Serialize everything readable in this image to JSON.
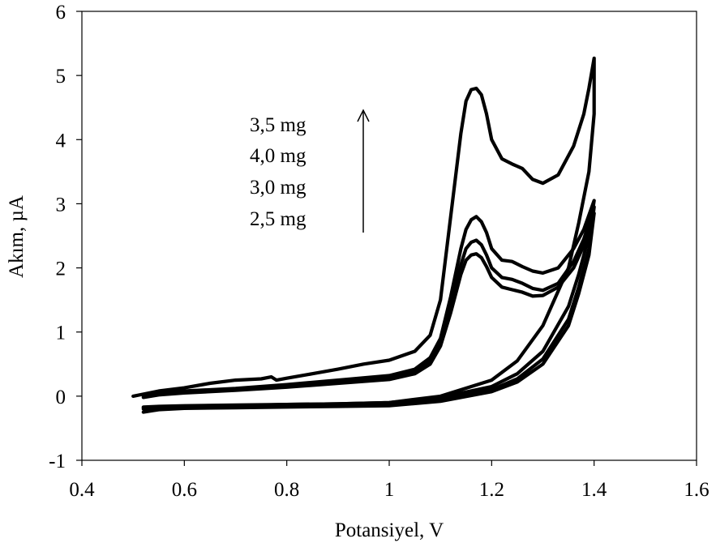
{
  "chart_data": {
    "type": "line",
    "title": "",
    "xlabel": "Potansiyel, V",
    "ylabel": "Akım, µA",
    "xlim": [
      0.4,
      1.6
    ],
    "ylim": [
      -1,
      6
    ],
    "x_ticks": [
      0.4,
      0.6,
      0.8,
      1.0,
      1.2,
      1.4,
      1.6
    ],
    "x_tick_labels": [
      "0.4",
      "0.6",
      "0.8",
      "1",
      "1.2",
      "1.4",
      "1.6"
    ],
    "y_ticks": [
      -1,
      0,
      1,
      2,
      3,
      4,
      5,
      6
    ],
    "y_tick_labels": [
      "-1",
      "0",
      "1",
      "2",
      "3",
      "4",
      "5",
      "6"
    ],
    "grid": false,
    "legend": "none",
    "annotation": {
      "labels": [
        "3,5 mg",
        "4,0 mg",
        "3,0 mg",
        "2,5 mg"
      ],
      "arrow": "up"
    },
    "series": [
      {
        "x": [
          0.5,
          0.55,
          0.6,
          0.65,
          0.7,
          0.75,
          0.77,
          0.78,
          0.8,
          0.85,
          0.9,
          0.95,
          1.0,
          1.05,
          1.08,
          1.1,
          1.12,
          1.14,
          1.15,
          1.16,
          1.17,
          1.18,
          1.19,
          1.2,
          1.22,
          1.24,
          1.26,
          1.28,
          1.3,
          1.33,
          1.36,
          1.38,
          1.39,
          1.4,
          1.4,
          1.39,
          1.37,
          1.35,
          1.3,
          1.25,
          1.2,
          1.1,
          1.0,
          0.9,
          0.8,
          0.7,
          0.6,
          0.55,
          0.52
        ],
        "y": [
          0.0,
          0.08,
          0.13,
          0.2,
          0.25,
          0.27,
          0.3,
          0.25,
          0.28,
          0.35,
          0.42,
          0.5,
          0.56,
          0.7,
          0.95,
          1.5,
          2.8,
          4.1,
          4.6,
          4.78,
          4.8,
          4.7,
          4.4,
          4.0,
          3.7,
          3.62,
          3.55,
          3.38,
          3.32,
          3.45,
          3.9,
          4.4,
          4.8,
          5.27,
          4.4,
          3.5,
          2.7,
          2.0,
          1.1,
          0.55,
          0.25,
          0.0,
          -0.1,
          -0.12,
          -0.13,
          -0.15,
          -0.16,
          -0.17,
          -0.18
        ]
      },
      {
        "x": [
          0.52,
          0.55,
          0.6,
          0.7,
          0.8,
          0.9,
          1.0,
          1.05,
          1.08,
          1.1,
          1.12,
          1.14,
          1.15,
          1.16,
          1.17,
          1.18,
          1.19,
          1.2,
          1.22,
          1.24,
          1.26,
          1.28,
          1.3,
          1.33,
          1.36,
          1.38,
          1.4,
          1.39,
          1.37,
          1.35,
          1.3,
          1.25,
          1.2,
          1.1,
          1.0,
          0.9,
          0.8,
          0.7,
          0.6,
          0.55,
          0.52
        ],
        "y": [
          0.02,
          0.05,
          0.08,
          0.12,
          0.18,
          0.25,
          0.32,
          0.42,
          0.6,
          0.9,
          1.55,
          2.3,
          2.6,
          2.75,
          2.8,
          2.72,
          2.55,
          2.3,
          2.12,
          2.1,
          2.02,
          1.95,
          1.92,
          2.0,
          2.3,
          2.6,
          3.05,
          2.5,
          1.9,
          1.4,
          0.7,
          0.35,
          0.15,
          -0.02,
          -0.1,
          -0.12,
          -0.13,
          -0.14,
          -0.15,
          -0.16,
          -0.17
        ]
      },
      {
        "x": [
          0.52,
          0.55,
          0.6,
          0.7,
          0.8,
          0.9,
          1.0,
          1.05,
          1.08,
          1.1,
          1.12,
          1.14,
          1.15,
          1.16,
          1.17,
          1.18,
          1.19,
          1.2,
          1.22,
          1.24,
          1.26,
          1.28,
          1.3,
          1.33,
          1.36,
          1.38,
          1.4,
          1.39,
          1.37,
          1.35,
          1.3,
          1.25,
          1.2,
          1.1,
          1.0,
          0.9,
          0.8,
          0.7,
          0.6,
          0.55,
          0.52
        ],
        "y": [
          0.0,
          0.04,
          0.07,
          0.11,
          0.16,
          0.22,
          0.28,
          0.38,
          0.55,
          0.85,
          1.4,
          2.05,
          2.3,
          2.4,
          2.43,
          2.36,
          2.2,
          2.0,
          1.85,
          1.82,
          1.76,
          1.68,
          1.65,
          1.76,
          2.1,
          2.45,
          2.95,
          2.3,
          1.7,
          1.2,
          0.58,
          0.27,
          0.1,
          -0.05,
          -0.12,
          -0.14,
          -0.15,
          -0.16,
          -0.17,
          -0.18,
          -0.2
        ]
      },
      {
        "x": [
          0.52,
          0.55,
          0.6,
          0.7,
          0.8,
          0.9,
          1.0,
          1.05,
          1.08,
          1.1,
          1.12,
          1.14,
          1.15,
          1.16,
          1.17,
          1.18,
          1.19,
          1.2,
          1.22,
          1.24,
          1.26,
          1.28,
          1.3,
          1.33,
          1.36,
          1.38,
          1.4,
          1.39,
          1.37,
          1.35,
          1.3,
          1.25,
          1.2,
          1.1,
          1.0,
          0.9,
          0.8,
          0.7,
          0.6,
          0.55,
          0.52
        ],
        "y": [
          -0.02,
          0.02,
          0.05,
          0.09,
          0.14,
          0.2,
          0.26,
          0.35,
          0.5,
          0.78,
          1.3,
          1.9,
          2.12,
          2.2,
          2.22,
          2.16,
          2.02,
          1.85,
          1.7,
          1.66,
          1.62,
          1.56,
          1.57,
          1.7,
          2.0,
          2.35,
          2.85,
          2.2,
          1.6,
          1.1,
          0.5,
          0.22,
          0.07,
          -0.08,
          -0.15,
          -0.16,
          -0.17,
          -0.18,
          -0.19,
          -0.21,
          -0.25
        ]
      }
    ]
  }
}
